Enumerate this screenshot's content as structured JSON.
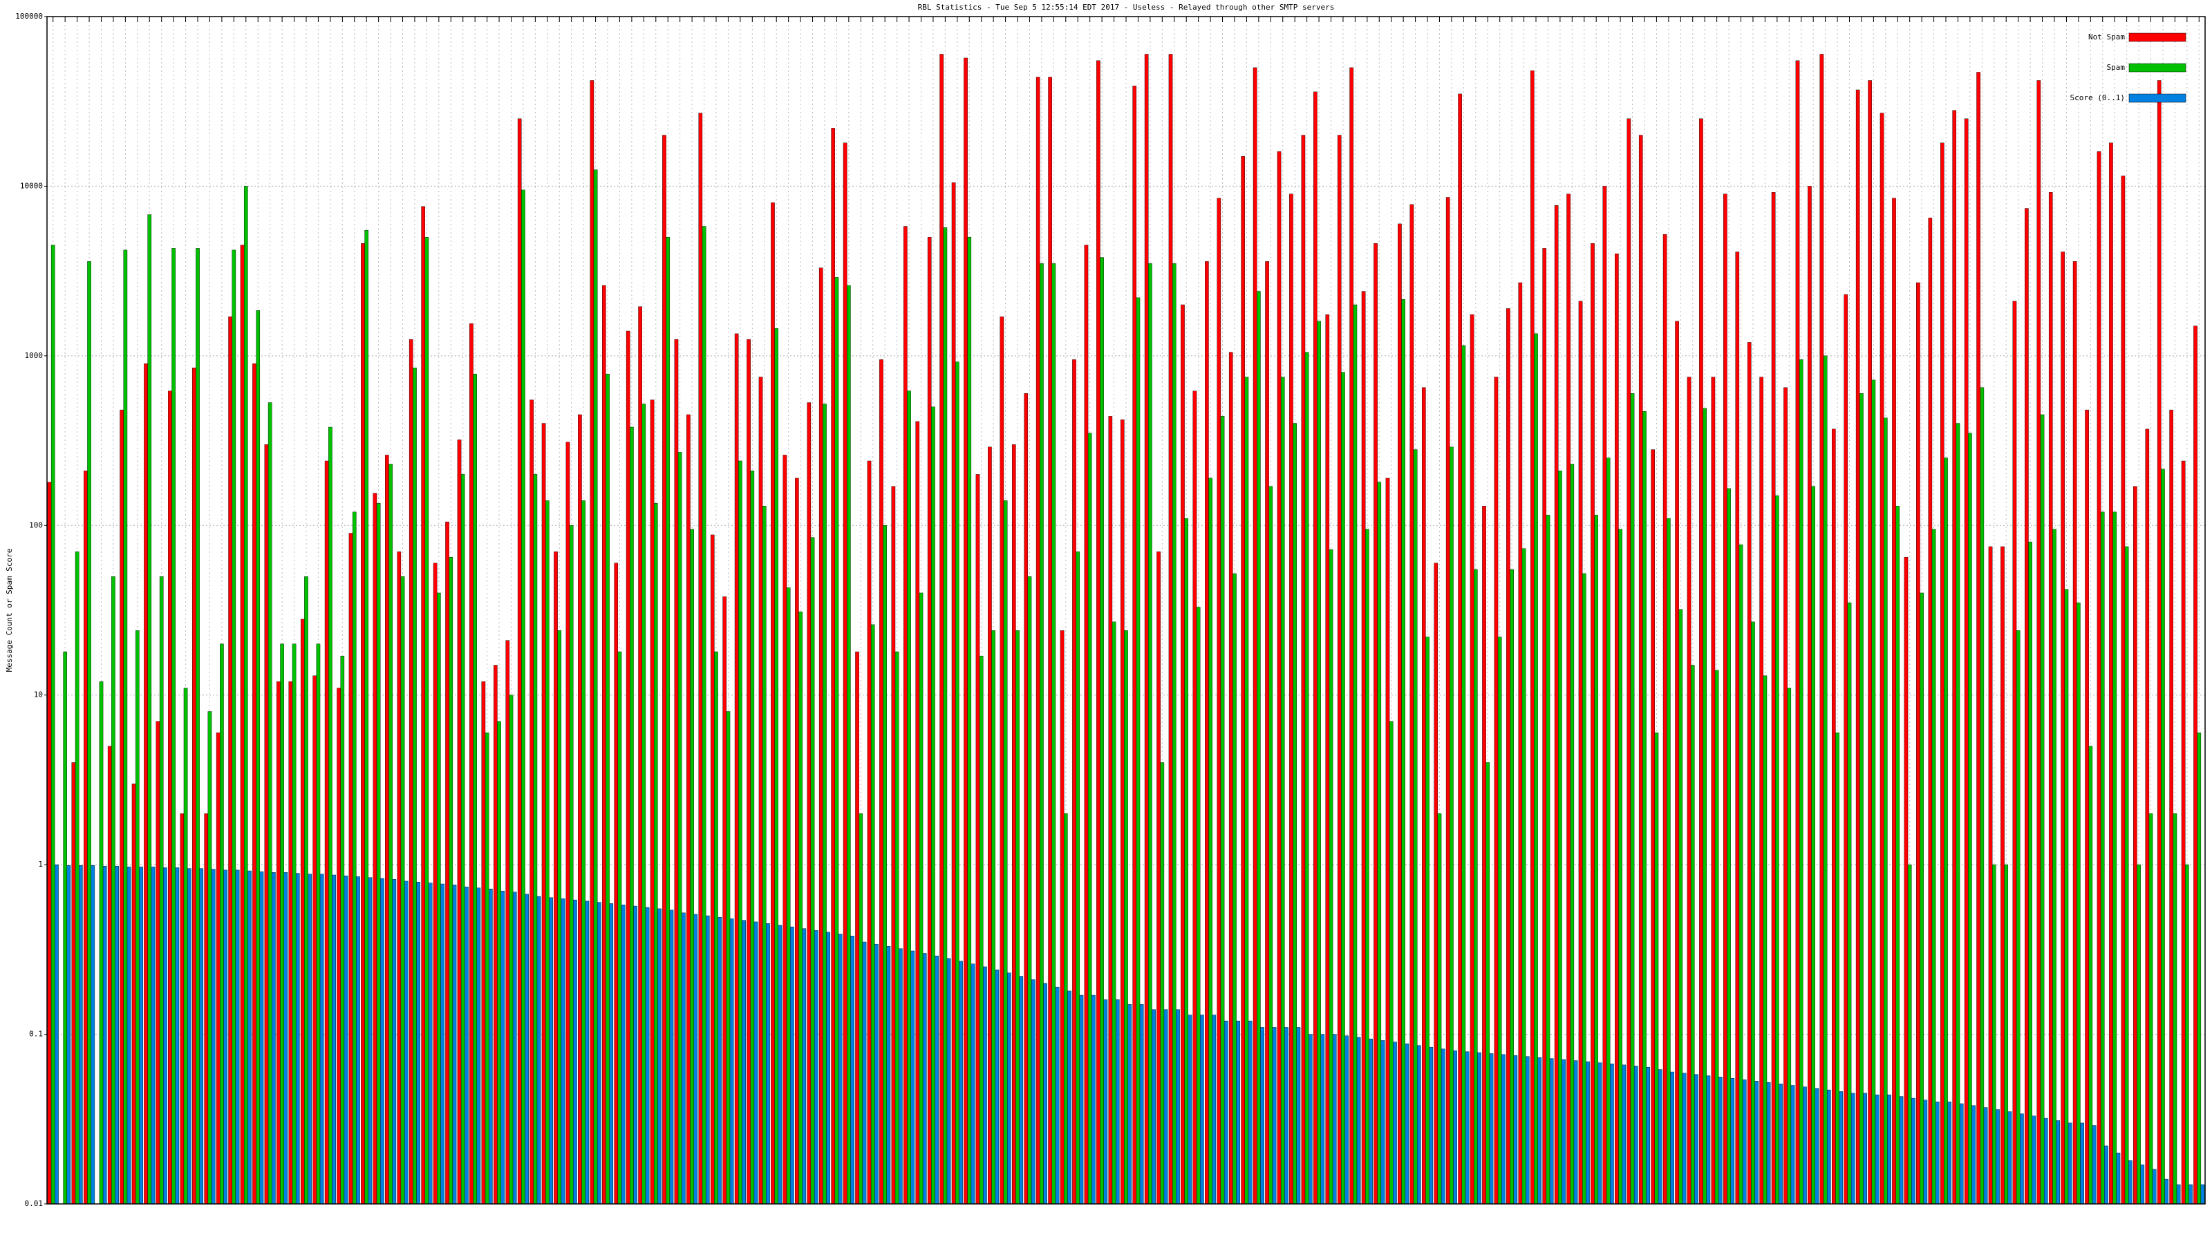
{
  "chart_data": {
    "type": "bar",
    "title": "RBL Statistics - Tue Sep  5 12:55:14 EDT 2017 - Useless - Relayed through other SMTP servers",
    "y_label": "Message Count or Spam Score",
    "log_scale": true,
    "grid": true,
    "legend": "top-right",
    "ylim": [
      0.01,
      100000
    ],
    "yticks": [
      0.01,
      0.1,
      1,
      10,
      100,
      1000,
      10000,
      100000
    ],
    "series": [
      {
        "name": "Not Spam",
        "color": "#ff0000",
        "values": [
          180,
          null,
          4,
          210,
          null,
          5,
          480,
          3,
          900,
          7,
          620,
          2,
          850,
          2,
          6,
          1700,
          4500,
          900,
          300,
          12,
          12,
          28,
          13,
          240,
          11,
          90,
          4600,
          155,
          260,
          70,
          1250,
          7600,
          60,
          105,
          320,
          1550,
          12,
          15,
          21,
          25000,
          550,
          400,
          70,
          310,
          450,
          42000,
          2600,
          60,
          1400,
          1950,
          550,
          20000,
          1250,
          450,
          27000,
          88,
          38,
          1350,
          1250,
          750,
          8000,
          260,
          190,
          530,
          3300,
          22000,
          18000,
          18,
          240,
          950,
          170,
          5800,
          410,
          5000,
          60000,
          10500,
          57000,
          200,
          290,
          1700,
          300,
          600,
          44000,
          44000,
          24,
          950,
          4500,
          55000,
          440,
          420,
          39000,
          60000,
          70,
          60000,
          2000,
          620,
          3600,
          8500,
          1050,
          15000,
          50000,
          3600,
          16000,
          9000,
          20000,
          36000,
          1750,
          20000,
          50000,
          2400,
          4600,
          190,
          6000,
          7800,
          650,
          60,
          8600,
          35000,
          1750,
          130,
          750,
          1900,
          2700,
          48000,
          4300,
          7700,
          9000,
          2100,
          4600,
          10000,
          4000,
          25000,
          20000,
          280,
          5200,
          1600,
          750,
          25000,
          750,
          9000,
          4100,
          1200,
          750,
          9200,
          650,
          55000,
          10000,
          60000,
          370,
          2300,
          37000,
          42000,
          27000,
          8500,
          65,
          2700,
          6500,
          18000,
          28000,
          25000,
          47000,
          75,
          75,
          2100,
          7400,
          42000,
          9200,
          4100,
          3600,
          480,
          16000,
          18000,
          11500,
          170,
          370,
          42000,
          480,
          240,
          1500
        ]
      },
      {
        "name": "Spam",
        "color": "#00c000",
        "values": [
          4500,
          18,
          70,
          3600,
          12,
          50,
          4200,
          24,
          6800,
          50,
          4300,
          11,
          4300,
          8,
          20,
          4200,
          10000,
          1850,
          530,
          20,
          20,
          50,
          20,
          380,
          17,
          120,
          5500,
          135,
          230,
          50,
          850,
          5000,
          40,
          65,
          200,
          780,
          6,
          7,
          10,
          9500,
          200,
          140,
          24,
          100,
          140,
          12500,
          780,
          18,
          380,
          520,
          135,
          5000,
          270,
          95,
          5800,
          18,
          8,
          240,
          210,
          130,
          1450,
          43,
          31,
          85,
          520,
          2900,
          2600,
          2,
          26,
          100,
          18,
          620,
          40,
          500,
          5700,
          920,
          5000,
          17,
          24,
          140,
          24,
          50,
          3500,
          3500,
          2,
          70,
          350,
          3800,
          27,
          24,
          2200,
          3500,
          4,
          3500,
          110,
          33,
          190,
          440,
          52,
          750,
          2400,
          170,
          750,
          400,
          1050,
          1600,
          72,
          800,
          2000,
          95,
          180,
          7,
          2150,
          280,
          22,
          2,
          290,
          1150,
          55,
          4,
          22,
          55,
          73,
          1350,
          115,
          210,
          230,
          52,
          115,
          250,
          95,
          600,
          470,
          6,
          110,
          32,
          15,
          490,
          14,
          165,
          77,
          27,
          13,
          150,
          11,
          950,
          170,
          1000,
          6,
          35,
          600,
          720,
          430,
          130,
          1,
          40,
          95,
          250,
          400,
          350,
          650,
          1,
          1,
          24,
          80,
          450,
          95,
          42,
          35,
          5,
          120,
          120,
          75,
          1,
          2,
          215,
          2,
          1,
          6
        ]
      },
      {
        "name": "Score (0..1)",
        "color": "#0080e0",
        "values": [
          1,
          0.99,
          0.99,
          0.99,
          0.98,
          0.98,
          0.97,
          0.97,
          0.97,
          0.96,
          0.96,
          0.95,
          0.95,
          0.94,
          0.93,
          0.93,
          0.92,
          0.91,
          0.9,
          0.9,
          0.89,
          0.88,
          0.88,
          0.87,
          0.86,
          0.85,
          0.84,
          0.83,
          0.82,
          0.8,
          0.79,
          0.78,
          0.77,
          0.76,
          0.74,
          0.73,
          0.72,
          0.7,
          0.69,
          0.67,
          0.65,
          0.64,
          0.63,
          0.62,
          0.61,
          0.6,
          0.59,
          0.58,
          0.57,
          0.56,
          0.55,
          0.54,
          0.52,
          0.51,
          0.5,
          0.49,
          0.48,
          0.47,
          0.46,
          0.45,
          0.44,
          0.43,
          0.42,
          0.41,
          0.4,
          0.39,
          0.38,
          0.35,
          0.34,
          0.33,
          0.32,
          0.31,
          0.3,
          0.29,
          0.28,
          0.27,
          0.26,
          0.25,
          0.24,
          0.23,
          0.22,
          0.21,
          0.2,
          0.19,
          0.18,
          0.17,
          0.17,
          0.16,
          0.16,
          0.15,
          0.15,
          0.14,
          0.14,
          0.14,
          0.13,
          0.13,
          0.13,
          0.12,
          0.12,
          0.12,
          0.11,
          0.11,
          0.11,
          0.11,
          0.1,
          0.1,
          0.1,
          0.098,
          0.096,
          0.094,
          0.092,
          0.09,
          0.088,
          0.086,
          0.084,
          0.082,
          0.08,
          0.079,
          0.078,
          0.077,
          0.076,
          0.075,
          0.074,
          0.073,
          0.072,
          0.071,
          0.07,
          0.069,
          0.068,
          0.067,
          0.066,
          0.065,
          0.064,
          0.062,
          0.06,
          0.059,
          0.058,
          0.057,
          0.056,
          0.055,
          0.054,
          0.053,
          0.052,
          0.051,
          0.05,
          0.049,
          0.048,
          0.047,
          0.046,
          0.045,
          0.045,
          0.044,
          0.044,
          0.043,
          0.042,
          0.041,
          0.04,
          0.04,
          0.039,
          0.038,
          0.037,
          0.036,
          0.035,
          0.034,
          0.033,
          0.032,
          0.031,
          0.03,
          0.03,
          0.029,
          0.022,
          0.02,
          0.018,
          0.017,
          0.016,
          0.014,
          0.013,
          0.013,
          0.013
        ]
      }
    ]
  }
}
